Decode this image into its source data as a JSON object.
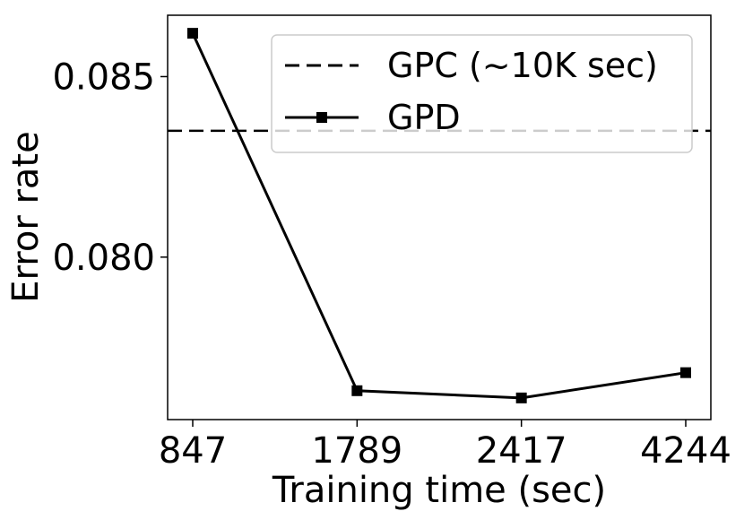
{
  "chart_data": {
    "type": "line",
    "x": [
      "847",
      "1789",
      "2417",
      "4244"
    ],
    "xlabel": "Training time (sec)",
    "ylabel": "Error rate",
    "yticks": [
      "0.080",
      "0.085"
    ],
    "ylim": [
      0.0755,
      0.0867
    ],
    "series": [
      {
        "name": "GPD",
        "values": [
          0.0862,
          0.0763,
          0.0761,
          0.0768
        ],
        "color": "#000000",
        "style": "solid",
        "marker": "square"
      }
    ],
    "reference_lines": [
      {
        "name": "GPC (~10K sec)",
        "y": 0.0835,
        "color": "#000000",
        "style": "dashed"
      }
    ],
    "legend_position": "top-right",
    "grid": false
  }
}
